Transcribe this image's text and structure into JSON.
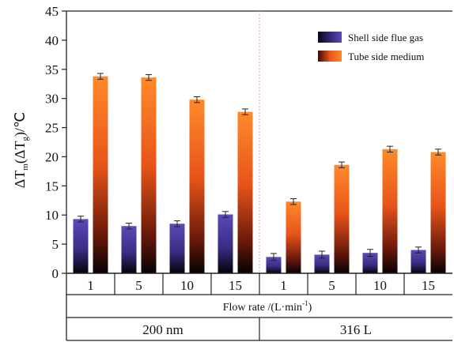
{
  "chart_data": {
    "type": "bar",
    "ylim": [
      0,
      45
    ],
    "yticks": [
      0,
      5,
      10,
      15,
      20,
      25,
      30,
      35,
      40,
      45
    ],
    "ylabel": {
      "main": "ΔT",
      "sub1": "m",
      "mid": "(ΔT",
      "sub2": "g",
      "tail": ")/℃"
    },
    "xlabel": {
      "main": "Flow rate /(L·min",
      "sup": "-1",
      "tail": ")"
    },
    "groups": [
      {
        "name": "200 nm",
        "categories": [
          "1",
          "5",
          "10",
          "15"
        ]
      },
      {
        "name": "316 L",
        "categories": [
          "1",
          "5",
          "10",
          "15"
        ]
      }
    ],
    "series": [
      {
        "name": "Shell side flue gas",
        "color": "#4a3aa0",
        "values": [
          9.3,
          8.1,
          8.5,
          10.1,
          2.8,
          3.2,
          3.5,
          4.0
        ],
        "errors": [
          0.5,
          0.5,
          0.5,
          0.5,
          0.6,
          0.6,
          0.6,
          0.5
        ]
      },
      {
        "name": "Tube side medium",
        "color": "#ff7a1a",
        "values": [
          33.8,
          33.6,
          29.8,
          27.7,
          12.3,
          18.6,
          21.3,
          20.8
        ],
        "errors": [
          0.5,
          0.5,
          0.5,
          0.5,
          0.5,
          0.5,
          0.5,
          0.5
        ]
      }
    ],
    "legend": "top-right",
    "grid": false
  }
}
